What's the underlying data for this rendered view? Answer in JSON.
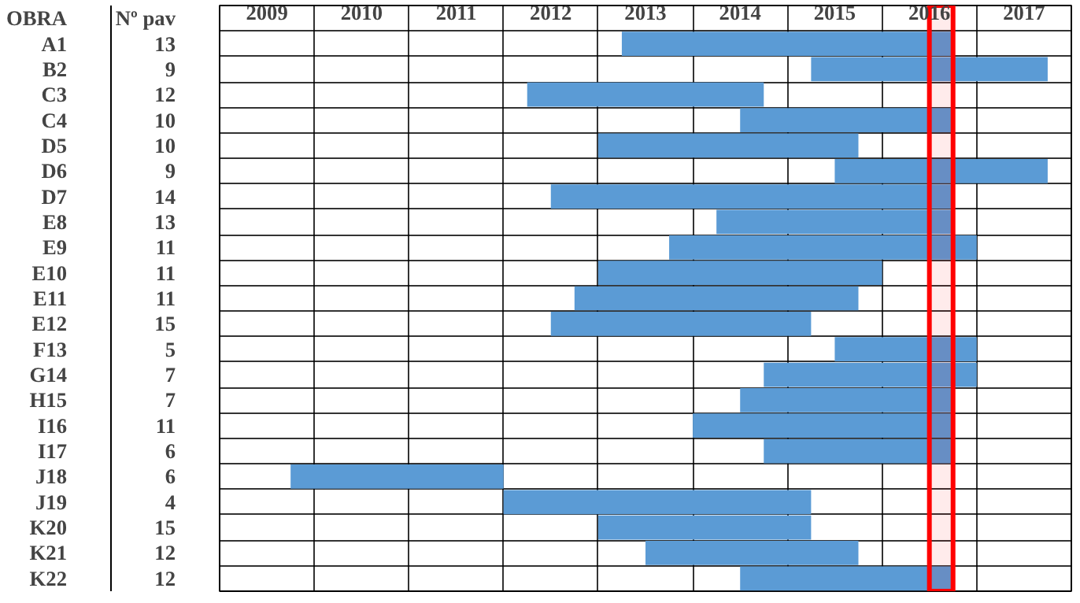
{
  "chart_data": {
    "type": "bar",
    "orientation": "horizontal",
    "ylabel": "OBRA",
    "categories": [
      "A1",
      "B2",
      "C3",
      "C4",
      "D5",
      "D6",
      "D7",
      "E8",
      "E9",
      "E10",
      "E11",
      "E12",
      "F13",
      "G14",
      "H15",
      "I16",
      "I17",
      "J18",
      "J19",
      "K20",
      "K21",
      "K22"
    ],
    "y2label": "Nº pav",
    "y2_categories": [
      "13",
      "9",
      "12",
      "10",
      "10",
      "9",
      "14",
      "13",
      "11",
      "11",
      "11",
      "15",
      "5",
      "7",
      "7",
      "11",
      "6",
      "6",
      "4",
      "15",
      "12",
      "12"
    ],
    "base": [
      2013.25,
      2015.25,
      2012.25,
      2014.5,
      2013.0,
      2015.5,
      2012.5,
      2014.25,
      2013.75,
      2013.0,
      2012.75,
      2012.5,
      2015.5,
      2014.75,
      2014.5,
      2014.0,
      2014.75,
      2009.75,
      2012.0,
      2013.0,
      2013.5,
      2014.5
    ],
    "values": [
      3.5,
      2.5,
      2.5,
      2.25,
      2.75,
      2.25,
      4.25,
      2.5,
      3.25,
      3.0,
      3.0,
      2.75,
      1.5,
      2.25,
      2.25,
      2.75,
      2.0,
      2.25,
      3.25,
      2.25,
      2.25,
      2.25
    ],
    "color": "#5b9bd5",
    "xlim": [
      2009,
      2018
    ],
    "xticks": [
      {
        "value": 2009,
        "label": null
      },
      {
        "value": 2009.5,
        "label": "2009"
      },
      {
        "value": 2010,
        "label": null
      },
      {
        "value": 2010.5,
        "label": "2010"
      },
      {
        "value": 2011,
        "label": null
      },
      {
        "value": 2011.5,
        "label": "2011"
      },
      {
        "value": 2012,
        "label": null
      },
      {
        "value": 2012.5,
        "label": "2012"
      },
      {
        "value": 2013,
        "label": null
      },
      {
        "value": 2013.5,
        "label": "2013"
      },
      {
        "value": 2014,
        "label": null
      },
      {
        "value": 2014.5,
        "label": "2014"
      },
      {
        "value": 2015,
        "label": null
      },
      {
        "value": 2015.5,
        "label": "2015"
      },
      {
        "value": 2016,
        "label": null
      },
      {
        "value": 2016.5,
        "label": "2016"
      },
      {
        "value": 2017,
        "label": null
      },
      {
        "value": 2017.5,
        "label": "2017"
      },
      {
        "value": 2018,
        "label": null
      }
    ],
    "bands": [
      {
        "axis": "x",
        "from": 2016.5,
        "to": 2016.75,
        "color": "#ff0000"
      }
    ],
    "grid": true
  }
}
